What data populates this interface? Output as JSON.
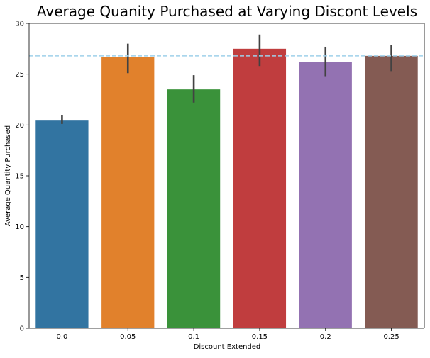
{
  "chart_data": {
    "type": "bar",
    "title": "Average Quanity Purchased at Varying Discont Levels",
    "xlabel": "Discount Extended",
    "ylabel": "Average Quantity Purchased",
    "categories": [
      "0.0",
      "0.05",
      "0.1",
      "0.15",
      "0.2",
      "0.25"
    ],
    "values": [
      20.5,
      26.7,
      23.5,
      27.5,
      26.2,
      26.8
    ],
    "error_low": [
      20.1,
      25.1,
      22.2,
      25.8,
      24.8,
      25.3
    ],
    "error_high": [
      21.0,
      28.0,
      24.9,
      28.9,
      27.7,
      27.9
    ],
    "colors": [
      "#3274a1",
      "#e1812c",
      "#3a923a",
      "#c03d3e",
      "#9372b2",
      "#845b53"
    ],
    "ylim": [
      0,
      30
    ],
    "yticks": [
      0,
      5,
      10,
      15,
      20,
      25,
      30
    ],
    "reference_line": {
      "value": 26.8,
      "color": "#9fd0ea",
      "style": "dashed"
    },
    "grid": false,
    "legend": "none"
  }
}
